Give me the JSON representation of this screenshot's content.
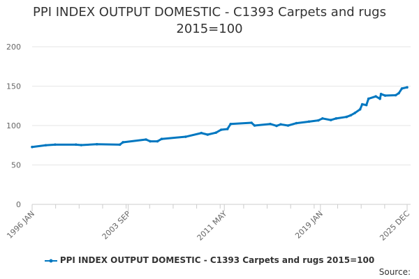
{
  "chart_data": {
    "type": "line",
    "title": [
      "PPI INDEX OUTPUT DOMESTIC - C1393 Carpets and rugs",
      "2015=100"
    ],
    "xlabel": "",
    "ylabel": "",
    "ylim": [
      0,
      200
    ],
    "yticks": [
      "0",
      "50",
      "100",
      "150",
      "200"
    ],
    "xlim": [
      "1996-01",
      "2025-12"
    ],
    "xticks": [
      {
        "label": "1996 JAN",
        "date": "1996-01"
      },
      {
        "label": "2003 SEP",
        "date": "2003-09"
      },
      {
        "label": "2011 MAY",
        "date": "2011-05"
      },
      {
        "label": "2019 JAN",
        "date": "2019-01"
      },
      {
        "label": "2025 DEC",
        "date": "2025-12"
      }
    ],
    "grid": true,
    "legend_position": "bottom",
    "color": "#0077c0",
    "series": [
      {
        "name": "PPI INDEX OUTPUT DOMESTIC - C1393 Carpets and rugs 2015=100",
        "x": [
          "1996-01",
          "1997-02",
          "1997-11",
          "1999-07",
          "1999-12",
          "2001-03",
          "2003-01",
          "2003-04",
          "2005-02",
          "2005-06",
          "2006-01",
          "2006-05",
          "2008-04",
          "2009-07",
          "2010-01",
          "2010-09",
          "2011-02",
          "2011-08",
          "2011-11",
          "2013-07",
          "2013-10",
          "2015-01",
          "2015-07",
          "2015-11",
          "2016-06",
          "2017-02",
          "2018-02",
          "2018-11",
          "2019-03",
          "2019-11",
          "2020-04",
          "2021-02",
          "2021-06",
          "2021-10",
          "2022-03",
          "2022-05",
          "2022-09",
          "2022-11",
          "2023-06",
          "2023-10",
          "2023-11",
          "2024-03",
          "2025-01",
          "2025-04",
          "2025-07",
          "2025-12"
        ],
        "y": [
          72.8,
          75,
          75.8,
          75.8,
          75.2,
          76.3,
          75.8,
          78.8,
          82.3,
          80,
          80,
          83,
          85.8,
          90.5,
          88.5,
          91,
          94.7,
          95.6,
          102,
          103.5,
          100,
          102,
          99.6,
          101.5,
          100,
          103,
          105,
          106.5,
          109,
          107,
          109,
          111,
          113,
          116,
          120.6,
          127,
          126,
          134,
          137,
          134,
          140,
          138,
          138.5,
          141,
          147,
          148.5
        ]
      }
    ]
  },
  "legend": {
    "label": "PPI INDEX OUTPUT DOMESTIC - C1393 Carpets and rugs 2015=100"
  },
  "source_label": "Source:"
}
